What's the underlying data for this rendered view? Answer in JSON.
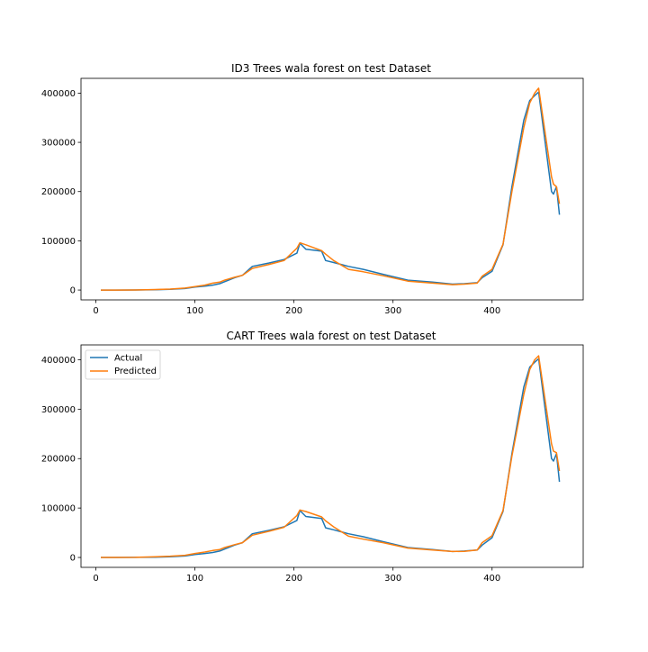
{
  "colors": {
    "actual": "#1f77b4",
    "predicted": "#ff7f0e"
  },
  "chart_data": [
    {
      "type": "line",
      "title": "ID3 Trees wala forest on test Dataset",
      "xlabel": "",
      "ylabel": "",
      "xlim": [
        -15,
        492
      ],
      "ylim": [
        -20000,
        430000
      ],
      "xticks": [
        0,
        100,
        200,
        300,
        400
      ],
      "xtick_labels": [
        "0",
        "100",
        "200",
        "300",
        "400"
      ],
      "yticks": [
        0,
        100000,
        200000,
        300000,
        400000
      ],
      "ytick_labels": [
        "0",
        "100000",
        "200000",
        "300000",
        "400000"
      ],
      "grid": false,
      "legend": false,
      "series": [
        {
          "role": "actual",
          "x": [
            5,
            20,
            40,
            60,
            75,
            90,
            100,
            110,
            118,
            125,
            130,
            140,
            148,
            158,
            175,
            190,
            203,
            206,
            212,
            228,
            232,
            240,
            255,
            270,
            290,
            315,
            340,
            360,
            372,
            385,
            390,
            400,
            411,
            420,
            432,
            438,
            443,
            447,
            460,
            462,
            465,
            468
          ],
          "y": [
            0,
            0,
            200,
            500,
            1500,
            3000,
            6000,
            8000,
            10000,
            13000,
            17000,
            25000,
            30000,
            48000,
            55000,
            62000,
            75000,
            95000,
            83000,
            79000,
            60000,
            56000,
            48000,
            42000,
            32000,
            20000,
            16000,
            12000,
            13000,
            15000,
            25000,
            38000,
            92000,
            210000,
            345000,
            385000,
            395000,
            402000,
            200000,
            195000,
            210000,
            153000
          ]
        },
        {
          "role": "predicted",
          "x": [
            5,
            20,
            40,
            60,
            75,
            90,
            100,
            110,
            118,
            125,
            130,
            140,
            148,
            158,
            175,
            190,
            203,
            206,
            212,
            228,
            232,
            240,
            255,
            270,
            290,
            315,
            340,
            360,
            372,
            385,
            390,
            400,
            411,
            420,
            432,
            438,
            443,
            447,
            460,
            462,
            465,
            468
          ],
          "y": [
            0,
            0,
            200,
            1000,
            2000,
            4000,
            7000,
            10000,
            14000,
            16000,
            20000,
            26000,
            30000,
            44000,
            52000,
            60000,
            85000,
            96000,
            92000,
            80000,
            73000,
            60000,
            42000,
            37000,
            29000,
            18000,
            14000,
            11000,
            12000,
            14000,
            28000,
            42000,
            93000,
            200000,
            330000,
            380000,
            400000,
            410000,
            230000,
            215000,
            210000,
            175000
          ]
        }
      ]
    },
    {
      "type": "line",
      "title": "CART Trees wala forest on test Dataset",
      "xlabel": "",
      "ylabel": "",
      "xlim": [
        -15,
        492
      ],
      "ylim": [
        -20000,
        430000
      ],
      "xticks": [
        0,
        100,
        200,
        300,
        400
      ],
      "xtick_labels": [
        "0",
        "100",
        "200",
        "300",
        "400"
      ],
      "yticks": [
        0,
        100000,
        200000,
        300000,
        400000
      ],
      "ytick_labels": [
        "0",
        "100000",
        "200000",
        "300000",
        "400000"
      ],
      "grid": false,
      "legend": true,
      "legend_position": "upper left",
      "legend_labels": [
        "Actual",
        "Predicted"
      ],
      "series": [
        {
          "name": "Actual",
          "role": "actual",
          "x": [
            5,
            20,
            40,
            60,
            75,
            90,
            100,
            110,
            118,
            125,
            130,
            140,
            148,
            158,
            175,
            190,
            203,
            206,
            212,
            228,
            232,
            240,
            255,
            270,
            290,
            315,
            340,
            360,
            372,
            385,
            390,
            400,
            411,
            420,
            432,
            438,
            443,
            447,
            460,
            462,
            465,
            468
          ],
          "y": [
            0,
            0,
            200,
            500,
            1500,
            3000,
            6000,
            8000,
            10000,
            13000,
            17000,
            25000,
            30000,
            48000,
            55000,
            62000,
            75000,
            95000,
            83000,
            79000,
            60000,
            56000,
            48000,
            42000,
            32000,
            20000,
            16000,
            12000,
            13000,
            15000,
            25000,
            40000,
            93000,
            210000,
            345000,
            385000,
            395000,
            402000,
            200000,
            195000,
            210000,
            153000
          ]
        },
        {
          "name": "Predicted",
          "role": "predicted",
          "x": [
            5,
            20,
            40,
            60,
            75,
            90,
            100,
            110,
            118,
            125,
            130,
            140,
            148,
            158,
            175,
            190,
            203,
            206,
            212,
            228,
            232,
            240,
            255,
            270,
            290,
            315,
            340,
            360,
            372,
            385,
            390,
            400,
            411,
            420,
            432,
            438,
            443,
            447,
            460,
            462,
            465,
            468
          ],
          "y": [
            0,
            0,
            300,
            1500,
            2500,
            4500,
            8000,
            11000,
            14000,
            16000,
            20000,
            26000,
            30000,
            45000,
            53000,
            61000,
            85000,
            96000,
            93000,
            82000,
            74000,
            62000,
            43000,
            37000,
            30000,
            19000,
            15000,
            12000,
            12500,
            15000,
            30000,
            44000,
            95000,
            205000,
            330000,
            380000,
            400000,
            408000,
            230000,
            215000,
            212000,
            175000
          ]
        }
      ]
    }
  ]
}
